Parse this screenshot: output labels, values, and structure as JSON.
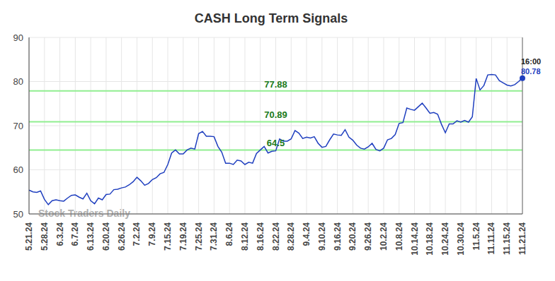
{
  "chart_data": {
    "type": "line",
    "title": "CASH Long Term Signals",
    "watermark": "Stock Traders Daily",
    "annotation": "16:00",
    "color": "#1f3fbf",
    "grid": true,
    "signals": [
      77.88,
      70.89,
      64.5
    ],
    "signal_color": "#90ee90",
    "ylim": [
      50,
      90
    ],
    "yticks": [
      50,
      60,
      70,
      80,
      90
    ],
    "categories": [
      "5.21.24",
      null,
      null,
      null,
      "5.28.24",
      null,
      null,
      null,
      "6.3.24",
      null,
      null,
      null,
      "6.7.24",
      null,
      null,
      null,
      "6.13.24",
      null,
      null,
      null,
      "6.20.24",
      null,
      null,
      null,
      "6.26.24",
      null,
      null,
      null,
      "7.2.24",
      null,
      null,
      null,
      "7.9.24",
      null,
      null,
      null,
      "7.15.24",
      null,
      null,
      null,
      "7.19.24",
      null,
      null,
      null,
      "7.25.24",
      null,
      null,
      null,
      "7.31.24",
      null,
      null,
      null,
      "8.6.24",
      null,
      null,
      null,
      "8.12.24",
      null,
      null,
      null,
      "8.16.24",
      null,
      null,
      null,
      "8.22.24",
      null,
      null,
      null,
      "8.28.24",
      null,
      null,
      null,
      "9.4.24",
      null,
      null,
      null,
      "9.10.24",
      null,
      null,
      null,
      "9.16.24",
      null,
      null,
      null,
      "9.20.24",
      null,
      null,
      null,
      "9.26.24",
      null,
      null,
      null,
      "10.2.24",
      null,
      null,
      null,
      "10.8.24",
      null,
      null,
      null,
      "10.14.24",
      null,
      null,
      null,
      "10.18.24",
      null,
      null,
      null,
      "10.24.24",
      null,
      null,
      null,
      "10.30.24",
      null,
      null,
      null,
      "11.5.24",
      null,
      null,
      null,
      "11.11.24",
      null,
      null,
      null,
      "11.15.24",
      null,
      null,
      null,
      "11.21.24"
    ],
    "values": [
      55.4,
      55.0,
      54.9,
      55.2,
      53.3,
      52.1,
      53.0,
      53.2,
      53.0,
      52.9,
      53.6,
      54.2,
      54.3,
      53.8,
      53.4,
      54.7,
      53.0,
      52.3,
      53.6,
      53.2,
      54.4,
      54.5,
      55.5,
      55.6,
      55.9,
      56.1,
      56.6,
      57.3,
      58.3,
      57.5,
      56.5,
      56.9,
      57.8,
      58.2,
      59.1,
      59.4,
      61.2,
      63.8,
      64.5,
      63.6,
      63.6,
      64.5,
      64.9,
      64.7,
      68.2,
      68.7,
      67.6,
      67.6,
      67.5,
      65.3,
      64.0,
      61.5,
      61.5,
      61.2,
      62.2,
      62.0,
      61.2,
      61.7,
      61.5,
      63.7,
      64.5,
      65.3,
      63.8,
      64.2,
      64.3,
      67.0,
      66.5,
      66.5,
      67.0,
      68.9,
      68.3,
      67.1,
      67.4,
      67.2,
      67.5,
      66.0,
      65.1,
      65.3,
      66.8,
      68.1,
      67.9,
      67.8,
      69.1,
      67.4,
      66.7,
      65.6,
      64.9,
      64.7,
      65.2,
      66.0,
      64.6,
      64.3,
      64.9,
      66.8,
      67.1,
      68.0,
      70.5,
      70.7,
      74.0,
      73.7,
      73.5,
      74.3,
      75.1,
      74.0,
      72.8,
      73.0,
      72.6,
      70.3,
      68.4,
      70.4,
      70.4,
      71.1,
      70.8,
      71.2,
      70.8,
      72.0,
      80.7,
      78.1,
      79.1,
      81.5,
      81.6,
      81.5,
      80.2,
      79.7,
      79.2,
      79.0,
      79.3,
      80.0,
      80.78
    ]
  }
}
